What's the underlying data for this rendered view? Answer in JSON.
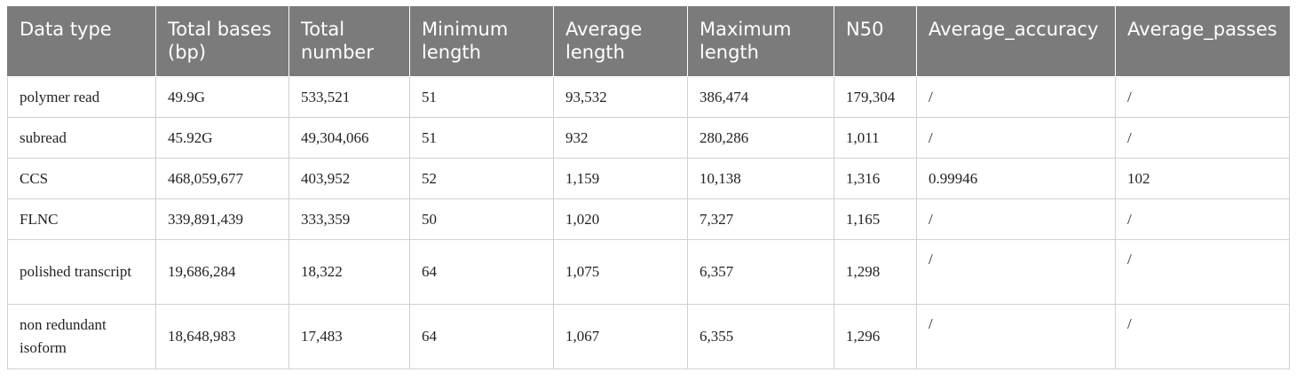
{
  "table": {
    "headers": [
      "Data type",
      "Total bases (bp)",
      "Total number",
      "Minimum length",
      "Average length",
      "Maximum length",
      "N50",
      "Average_accuracy",
      "Average_passes"
    ],
    "rows": [
      [
        "polymer read",
        "49.9G",
        "533,521",
        "51",
        "93,532",
        "386,474",
        "179,304",
        "/",
        "/"
      ],
      [
        "subread",
        "45.92G",
        "49,304,066",
        "51",
        "932",
        "280,286",
        "1,011",
        "/",
        "/"
      ],
      [
        "CCS",
        "468,059,677",
        "403,952",
        "52",
        "1,159",
        "10,138",
        "1,316",
        "0.99946",
        "102"
      ],
      [
        "FLNC",
        "339,891,439",
        "333,359",
        "50",
        "1,020",
        "7,327",
        "1,165",
        "/",
        "/"
      ],
      [
        "polished transcript",
        "19,686,284",
        "18,322",
        "64",
        "1,075",
        "6,357",
        "1,298",
        "/",
        "/"
      ],
      [
        "non redundant isoform",
        "18,648,983",
        "17,483",
        "64",
        "1,067",
        "6,355",
        "1,296",
        "/",
        "/"
      ]
    ]
  }
}
